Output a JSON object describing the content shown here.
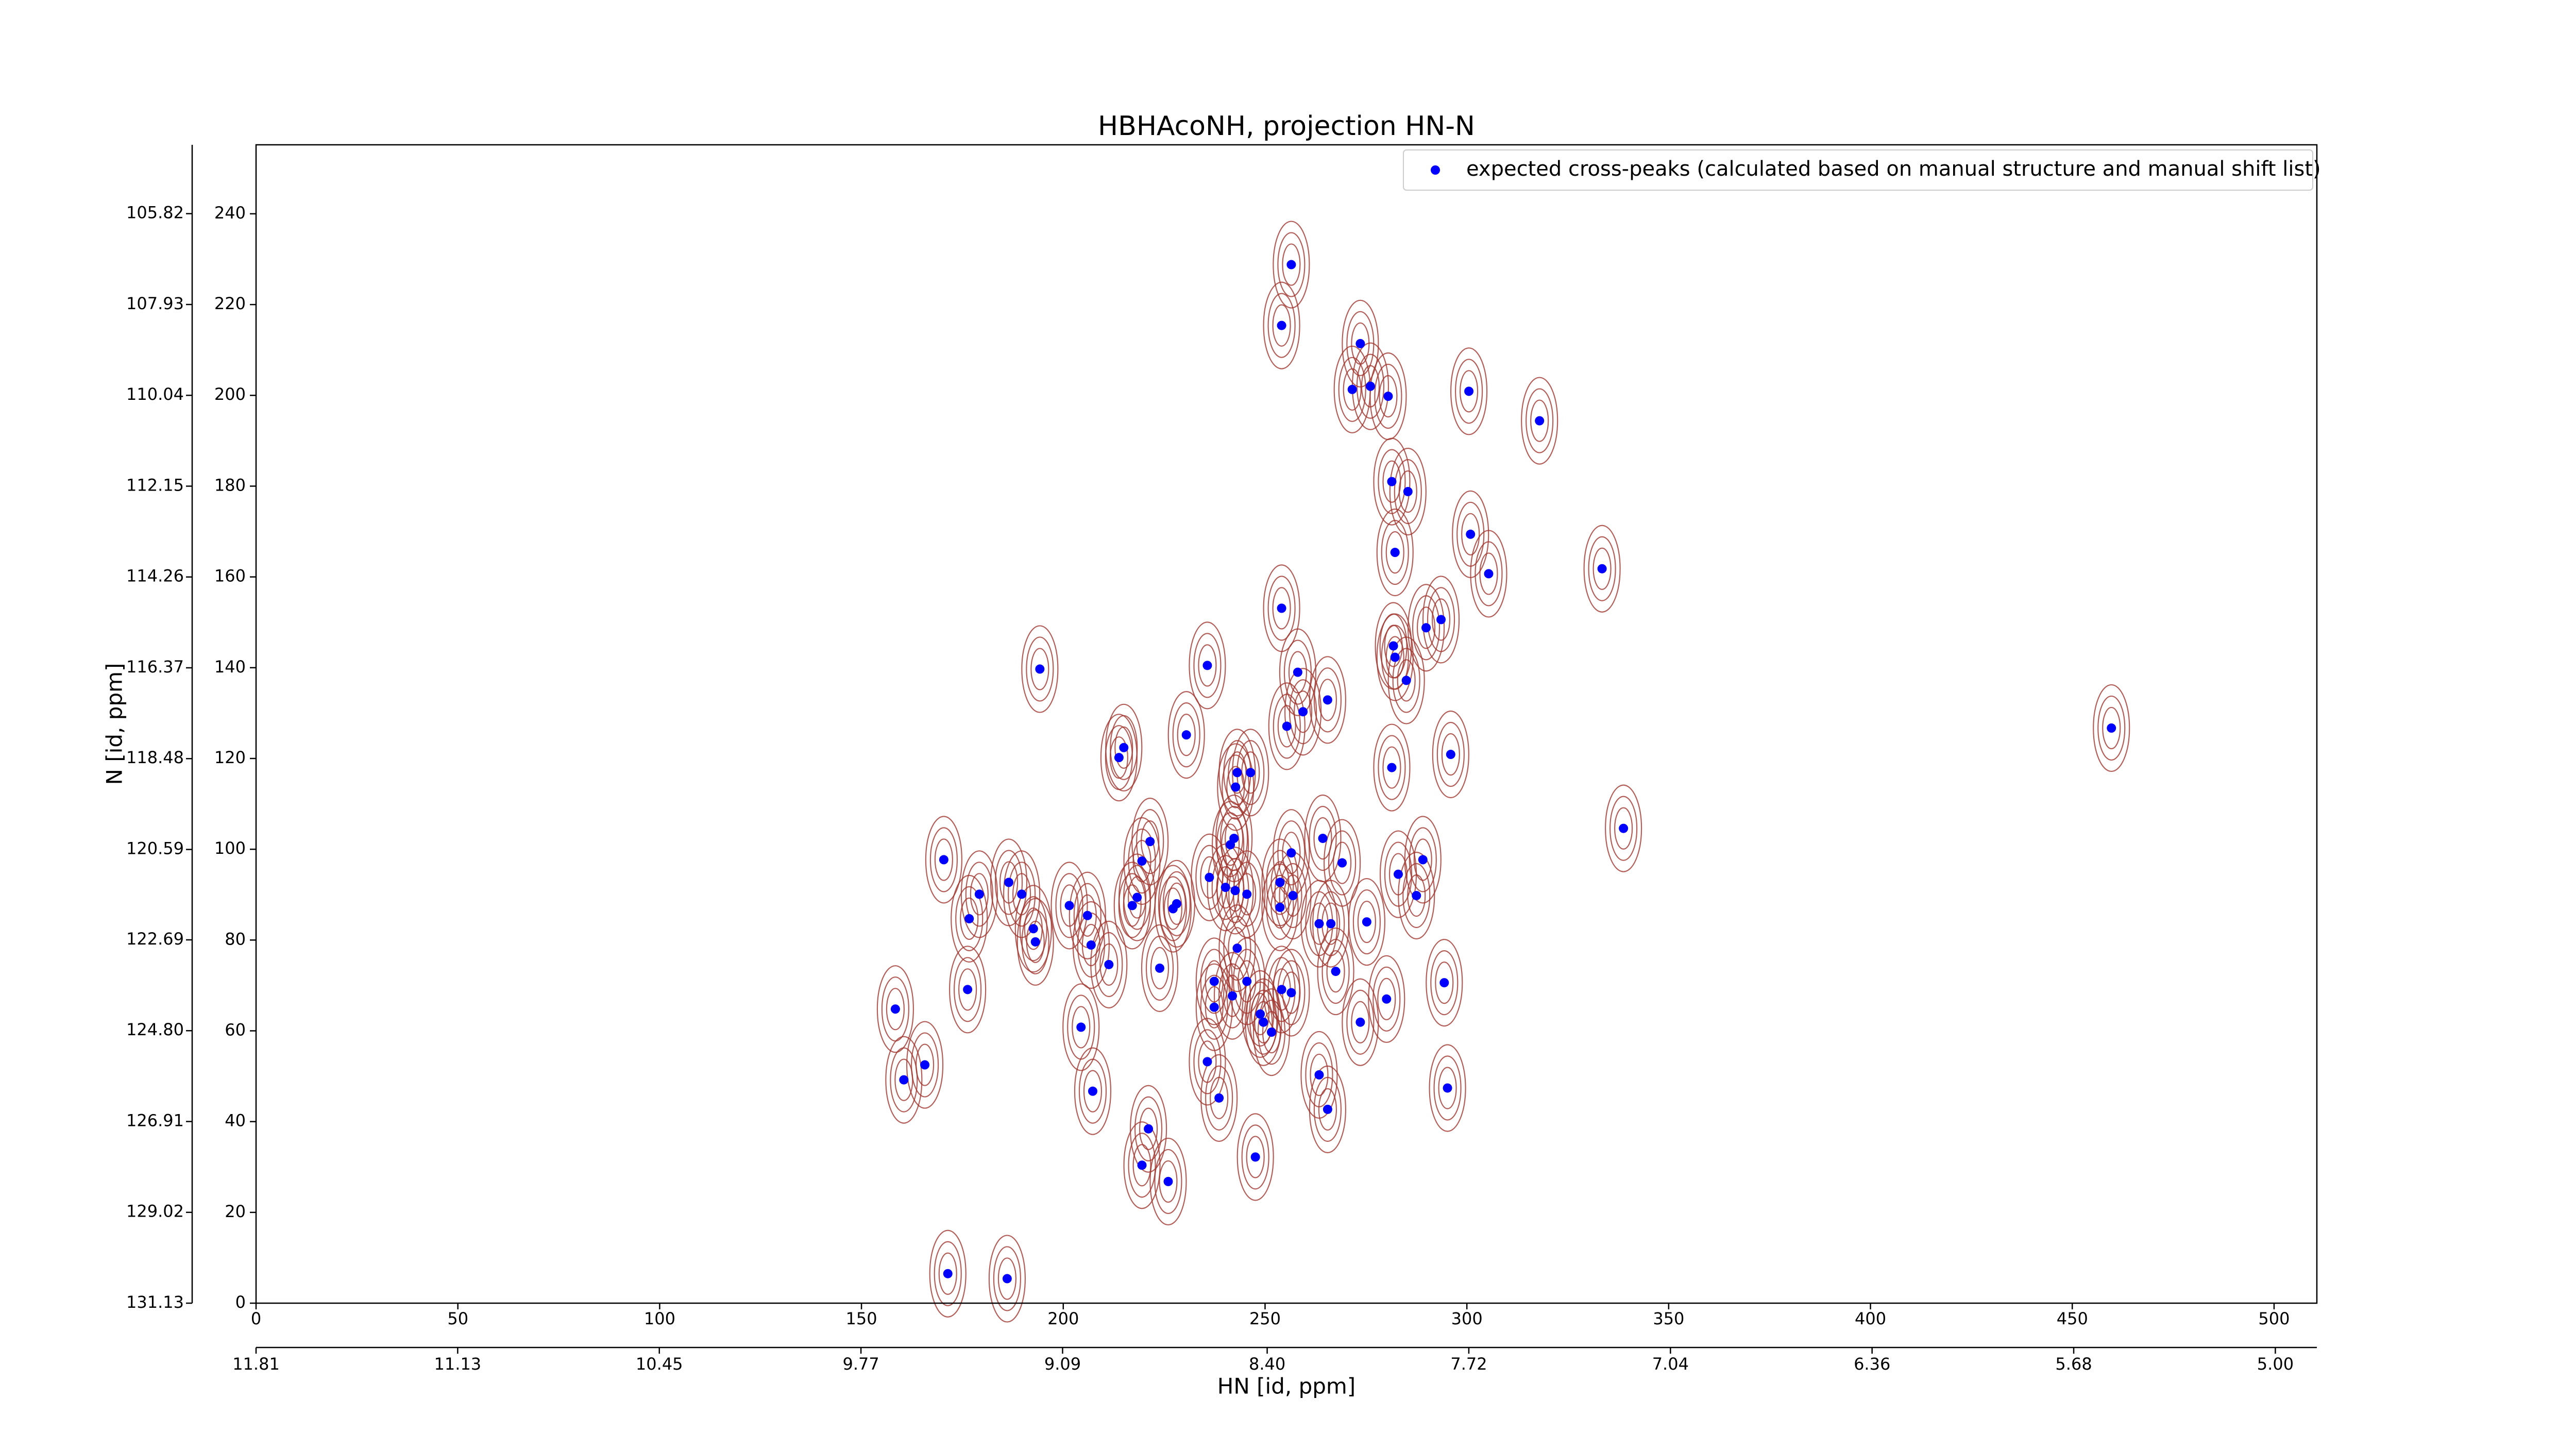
{
  "chart_data": {
    "type": "scatter",
    "title": "HBHAcoNH, projection HN-N",
    "xlabel": "HN [id, ppm]",
    "ylabel": "N [id, ppm]",
    "legend_loc": "upper right",
    "xlim": [
      0,
      510.6
    ],
    "ylim": [
      0,
      255.2
    ],
    "xticks": [
      0,
      50,
      100,
      150,
      200,
      250,
      300,
      350,
      400,
      450,
      500
    ],
    "yticks": [
      0,
      20,
      40,
      60,
      80,
      100,
      120,
      140,
      160,
      180,
      200,
      220,
      240
    ],
    "x2lim": [
      11.81,
      4.86
    ],
    "x2ticks": [
      11.81,
      11.13,
      10.45,
      9.77,
      9.09,
      {
        "value": 8.4,
        "label": "8.40"
      },
      7.72,
      7.04,
      6.36,
      5.68,
      {
        "value": 5,
        "label": "5.00"
      }
    ],
    "y2lim": [
      131.13,
      104.22
    ],
    "y2ticks": [
      131.13,
      129.02,
      126.91,
      {
        "value": 124.8,
        "label": "124.80"
      },
      122.69,
      120.59,
      118.48,
      116.37,
      114.26,
      112.15,
      110.04,
      107.93,
      105.82
    ],
    "x": [
      256.5,
      254.1,
      273.6,
      271.6,
      276.1,
      280.5,
      300.5,
      318.0,
      281.4,
      285.4,
      300.9,
      282.2,
      305.4,
      333.5,
      254.1,
      293.6,
      289.9,
      281.8,
      282.2,
      235.7,
      194.2,
      258.1,
      285.0,
      265.5,
      259.4,
      255.4,
      230.5,
      215.0,
      213.8,
      296.0,
      281.4,
      243.1,
      246.4,
      242.7,
      459.7,
      338.8,
      242.3,
      241.4,
      264.3,
      221.5,
      170.4,
      256.5,
      289.1,
      269.1,
      219.5,
      283.0,
      236.2,
      253.7,
      240.2,
      242.6,
      245.5,
      186.5,
      189.7,
      179.2,
      256.9,
      287.5,
      218.3,
      217.1,
      228.1,
      227.2,
      201.5,
      253.7,
      206.0,
      176.7,
      263.4,
      266.3,
      275.2,
      192.6,
      193.1,
      243.1,
      206.9,
      211.3,
      223.9,
      267.5,
      176.3,
      237.4,
      245.5,
      254.1,
      256.5,
      294.4,
      241.9,
      280.1,
      237.4,
      248.8,
      158.4,
      249.6,
      273.6,
      204.4,
      251.6,
      235.7,
      165.7,
      160.5,
      263.4,
      207.3,
      295.2,
      238.6,
      265.5,
      221.1,
      247.6,
      219.5,
      226.0,
      171.4,
      186.1
    ],
    "series": [
      {
        "name": "expected cross-peaks (calculated based on manual structure and manual shift list)",
        "color": "#0000ff",
        "values": [
          228.8,
          215.4,
          211.4,
          201.3,
          202.0,
          199.8,
          200.9,
          194.4,
          181.0,
          178.8,
          169.4,
          165.4,
          160.7,
          161.8,
          153.1,
          150.6,
          148.8,
          144.8,
          142.3,
          140.5,
          139.7,
          139.0,
          137.2,
          132.9,
          130.3,
          127.1,
          125.2,
          122.4,
          120.2,
          120.9,
          118.0,
          116.9,
          116.9,
          113.7,
          126.7,
          104.6,
          102.4,
          101.0,
          102.4,
          101.7,
          97.7,
          99.2,
          97.7,
          97.0,
          97.4,
          94.5,
          93.8,
          92.7,
          91.6,
          90.9,
          90.1,
          92.7,
          90.1,
          90.1,
          89.8,
          89.8,
          89.4,
          87.6,
          88.0,
          86.9,
          87.6,
          87.2,
          85.4,
          84.7,
          83.6,
          83.6,
          84.0,
          82.5,
          79.6,
          78.2,
          78.9,
          74.6,
          73.8,
          73.1,
          69.1,
          70.9,
          70.9,
          69.1,
          68.4,
          70.6,
          67.7,
          67.0,
          65.2,
          63.7,
          64.8,
          61.9,
          61.9,
          60.8,
          59.7,
          53.2,
          52.5,
          49.2,
          50.3,
          46.7,
          47.4,
          45.2,
          42.7,
          38.4,
          32.2,
          30.4,
          26.8,
          6.5,
          5.4
        ]
      }
    ]
  }
}
